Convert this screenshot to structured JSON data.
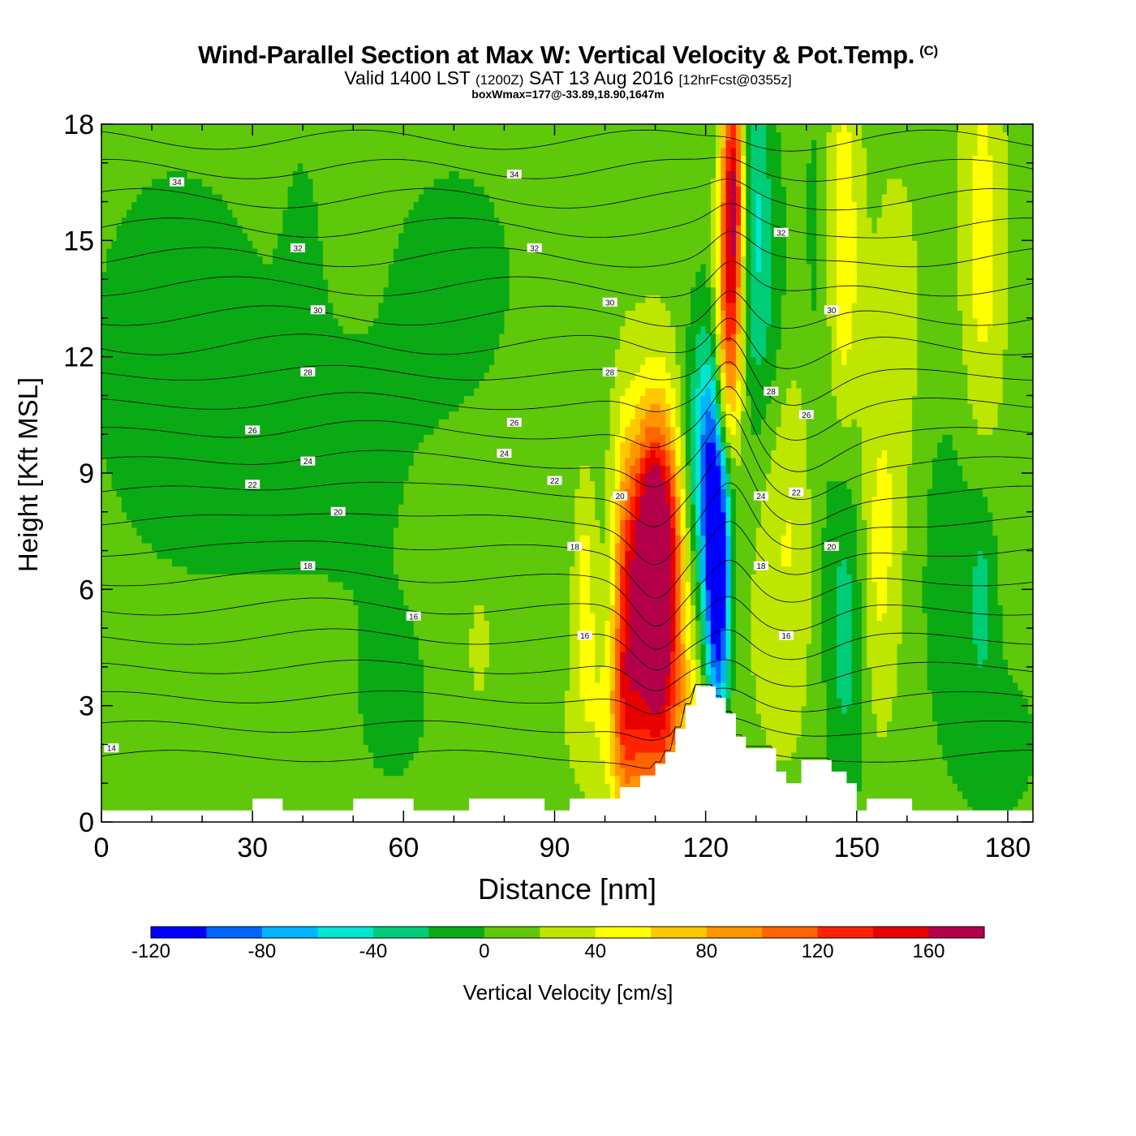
{
  "title": {
    "main": "Wind-Parallel Section at Max W: Vertical Velocity & Pot.Temp.",
    "copyright": "(C)",
    "valid_prefix": "Valid 1400 LST",
    "utc": "(1200Z)",
    "date": "SAT 13 Aug 2016",
    "forecast": "[12hrFcst@0355z]",
    "box_max": "boxWmax=177@-33.89,18.90,1647m"
  },
  "chart_data": {
    "type": "heatmap",
    "xlabel": "Distance [nm]",
    "ylabel": "Height [Kft MSL]",
    "xlim": [
      0,
      185
    ],
    "ylim": [
      0,
      18
    ],
    "xticks": [
      0,
      30,
      60,
      90,
      120,
      150,
      180
    ],
    "yticks": [
      0,
      3,
      6,
      9,
      12,
      15,
      18
    ],
    "colorbar": {
      "label": "Vertical Velocity [cm/s]",
      "bounds": [
        -120,
        -100,
        -80,
        -60,
        -40,
        -20,
        0,
        20,
        40,
        60,
        80,
        100,
        120,
        140,
        160,
        180
      ],
      "tick_labels": [
        "-120",
        "-80",
        "-40",
        "0",
        "40",
        "80",
        "120",
        "160"
      ],
      "colors": [
        "#0000ff",
        "#0066ff",
        "#00b4ff",
        "#00e6d2",
        "#00cd78",
        "#0aaa14",
        "#5fc80a",
        "#bee600",
        "#ffff00",
        "#ffc800",
        "#ff9600",
        "#ff6400",
        "#ff2300",
        "#e60000",
        "#b4004b"
      ]
    },
    "background_w": 10,
    "features": [
      {
        "x": 110,
        "y": 6.8,
        "w": 177,
        "sx": 3,
        "sy": 2.3
      },
      {
        "x": 110,
        "y": 5.0,
        "w": 80,
        "sx": 4.5,
        "sy": 4
      },
      {
        "x": 104,
        "y": 5.0,
        "w": 75,
        "sx": 1.8,
        "sy": 3.5
      },
      {
        "x": 96,
        "y": 6.0,
        "w": 40,
        "sx": 1.5,
        "sy": 2
      },
      {
        "x": 108,
        "y": 2.6,
        "w": 45,
        "sx": 9,
        "sy": 1.6
      },
      {
        "x": 125.5,
        "y": 16.5,
        "w": 155,
        "sx": 1.6,
        "sy": 2.2
      },
      {
        "x": 124.5,
        "y": 13.0,
        "w": 100,
        "sx": 2,
        "sy": 2
      },
      {
        "x": 124,
        "y": 10.5,
        "w": 40,
        "sx": 2,
        "sy": 1.5
      },
      {
        "x": 122,
        "y": 8.0,
        "w": -120,
        "sx": 2,
        "sy": 3
      },
      {
        "x": 122.5,
        "y": 5.0,
        "w": -70,
        "sx": 1.6,
        "sy": 2.5
      },
      {
        "x": 119,
        "y": 9.5,
        "w": -55,
        "sx": 2.5,
        "sy": 2.5
      },
      {
        "x": 129,
        "y": 16.0,
        "w": -50,
        "sx": 2.5,
        "sy": 4
      },
      {
        "x": 133,
        "y": 13.0,
        "w": -30,
        "sx": 3,
        "sy": 3
      },
      {
        "x": 136,
        "y": 8.0,
        "w": 35,
        "sx": 5,
        "sy": 4
      },
      {
        "x": 143,
        "y": 13.0,
        "w": -25,
        "sx": 3,
        "sy": 5
      },
      {
        "x": 147,
        "y": 14.5,
        "w": 55,
        "sx": 2.5,
        "sy": 4
      },
      {
        "x": 148,
        "y": 5.5,
        "w": -45,
        "sx": 3,
        "sy": 3.5
      },
      {
        "x": 154,
        "y": 6.5,
        "w": 35,
        "sx": 3,
        "sy": 3
      },
      {
        "x": 175,
        "y": 15.0,
        "w": 40,
        "sx": 3,
        "sy": 4
      },
      {
        "x": 158,
        "y": 12.0,
        "w": 20,
        "sx": 4,
        "sy": 4
      },
      {
        "x": 168,
        "y": 7.0,
        "w": -20,
        "sx": 5,
        "sy": 3
      },
      {
        "x": 175,
        "y": 6.0,
        "w": -30,
        "sx": 2,
        "sy": 2
      },
      {
        "x": 178,
        "y": 2.0,
        "w": -15,
        "sx": 8,
        "sy": 2
      },
      {
        "x": 75,
        "y": 4.5,
        "w": 35,
        "sx": 1.2,
        "sy": 0.8
      },
      {
        "x": 15,
        "y": 12.0,
        "w": -20,
        "sx": 14,
        "sy": 4
      },
      {
        "x": 40,
        "y": 9.5,
        "w": -15,
        "sx": 15,
        "sy": 2.5
      },
      {
        "x": 70,
        "y": 14.0,
        "w": -15,
        "sx": 12,
        "sy": 3
      },
      {
        "x": 58,
        "y": 3.0,
        "w": -12,
        "sx": 10,
        "sy": 3
      },
      {
        "x": 40,
        "y": 14.0,
        "w": -12,
        "sx": 3,
        "sy": 3
      }
    ],
    "terrain": [
      [
        0,
        0.3
      ],
      [
        30,
        0.3
      ],
      [
        30,
        0.6
      ],
      [
        36,
        0.6
      ],
      [
        36,
        0.3
      ],
      [
        50,
        0.3
      ],
      [
        50,
        0.6
      ],
      [
        62,
        0.6
      ],
      [
        62,
        0.3
      ],
      [
        73,
        0.3
      ],
      [
        73,
        0.6
      ],
      [
        88,
        0.6
      ],
      [
        88,
        0.3
      ],
      [
        93,
        0.3
      ],
      [
        93,
        0.6
      ],
      [
        103,
        0.6
      ],
      [
        103,
        0.9
      ],
      [
        107,
        0.9
      ],
      [
        107,
        1.2
      ],
      [
        110,
        1.2
      ],
      [
        110,
        1.5
      ],
      [
        112,
        1.5
      ],
      [
        112,
        1.8
      ],
      [
        114,
        1.8
      ],
      [
        114,
        2.4
      ],
      [
        116,
        2.4
      ],
      [
        116,
        3.0
      ],
      [
        118,
        3.0
      ],
      [
        118,
        3.5
      ],
      [
        122,
        3.5
      ],
      [
        122,
        3.2
      ],
      [
        124,
        3.2
      ],
      [
        124,
        2.8
      ],
      [
        126,
        2.8
      ],
      [
        126,
        2.2
      ],
      [
        128,
        2.2
      ],
      [
        128,
        1.9
      ],
      [
        134,
        1.9
      ],
      [
        134,
        1.3
      ],
      [
        136,
        1.3
      ],
      [
        136,
        1.0
      ],
      [
        139,
        1.0
      ],
      [
        139,
        1.6
      ],
      [
        145,
        1.6
      ],
      [
        145,
        1.3
      ],
      [
        148,
        1.3
      ],
      [
        148,
        1.0
      ],
      [
        150,
        1.0
      ],
      [
        150,
        0.3
      ],
      [
        152,
        0.3
      ],
      [
        152,
        0.6
      ],
      [
        161,
        0.6
      ],
      [
        161,
        0.3
      ],
      [
        185,
        0.3
      ]
    ],
    "isentropes": {
      "levels": [
        14,
        15,
        16,
        17,
        18,
        19,
        20,
        21,
        22,
        23,
        24,
        25,
        26,
        27,
        28,
        29,
        30,
        31,
        32,
        33,
        34,
        35
      ],
      "contour_labels": [
        {
          "text": "34",
          "x": 15,
          "y": 16.5
        },
        {
          "text": "34",
          "x": 82,
          "y": 16.7
        },
        {
          "text": "32",
          "x": 39,
          "y": 14.8
        },
        {
          "text": "32",
          "x": 86,
          "y": 14.8
        },
        {
          "text": "32",
          "x": 135,
          "y": 15.2
        },
        {
          "text": "30",
          "x": 43,
          "y": 13.2
        },
        {
          "text": "30",
          "x": 101,
          "y": 13.4
        },
        {
          "text": "30",
          "x": 145,
          "y": 13.2
        },
        {
          "text": "28",
          "x": 41,
          "y": 11.6
        },
        {
          "text": "28",
          "x": 101,
          "y": 11.6
        },
        {
          "text": "28",
          "x": 133,
          "y": 11.1
        },
        {
          "text": "26",
          "x": 30,
          "y": 10.1
        },
        {
          "text": "26",
          "x": 82,
          "y": 10.3
        },
        {
          "text": "26",
          "x": 140,
          "y": 10.5
        },
        {
          "text": "24",
          "x": 41,
          "y": 9.3
        },
        {
          "text": "24",
          "x": 80,
          "y": 9.5
        },
        {
          "text": "24",
          "x": 131,
          "y": 8.4
        },
        {
          "text": "22",
          "x": 30,
          "y": 8.7
        },
        {
          "text": "22",
          "x": 90,
          "y": 8.8
        },
        {
          "text": "22",
          "x": 138,
          "y": 8.5
        },
        {
          "text": "20",
          "x": 47,
          "y": 8.0
        },
        {
          "text": "20",
          "x": 103,
          "y": 8.4
        },
        {
          "text": "20",
          "x": 145,
          "y": 7.1
        },
        {
          "text": "18",
          "x": 41,
          "y": 6.6
        },
        {
          "text": "18",
          "x": 94,
          "y": 7.1
        },
        {
          "text": "18",
          "x": 131,
          "y": 6.6
        },
        {
          "text": "16",
          "x": 62,
          "y": 5.3
        },
        {
          "text": "16",
          "x": 96,
          "y": 4.8
        },
        {
          "text": "16",
          "x": 136,
          "y": 4.8
        },
        {
          "text": "14",
          "x": 2,
          "y": 1.9
        }
      ]
    }
  }
}
